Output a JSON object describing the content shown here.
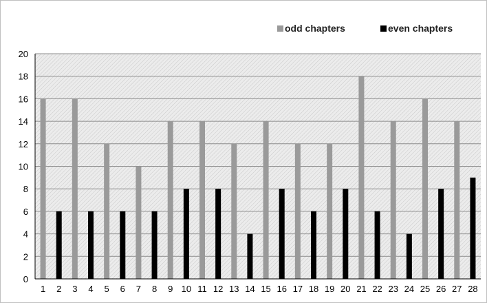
{
  "chart_data": {
    "type": "bar",
    "categories": [
      "1",
      "2",
      "3",
      "4",
      "5",
      "6",
      "7",
      "8",
      "9",
      "10",
      "11",
      "12",
      "13",
      "14",
      "15",
      "16",
      "17",
      "18",
      "19",
      "20",
      "21",
      "22",
      "23",
      "24",
      "25",
      "26",
      "27",
      "28"
    ],
    "series": [
      {
        "name": "odd chapters",
        "color": "#9a9a9a",
        "values": [
          16,
          0,
          16,
          0,
          12,
          0,
          10,
          0,
          14,
          0,
          14,
          0,
          12,
          0,
          14,
          0,
          12,
          0,
          12,
          0,
          18,
          0,
          14,
          0,
          16,
          0,
          14,
          0
        ]
      },
      {
        "name": "even chapters",
        "color": "#000000",
        "values": [
          0,
          6,
          0,
          6,
          0,
          6,
          0,
          6,
          0,
          8,
          0,
          8,
          0,
          4,
          0,
          8,
          0,
          6,
          0,
          8,
          0,
          6,
          0,
          4,
          0,
          8,
          0,
          9
        ]
      }
    ],
    "title": "",
    "xlabel": "",
    "ylabel": "",
    "ylim": [
      0,
      20
    ],
    "yticks": [
      0,
      2,
      4,
      6,
      8,
      10,
      12,
      14,
      16,
      18,
      20
    ],
    "grid": true,
    "legend_position": "top-right"
  }
}
